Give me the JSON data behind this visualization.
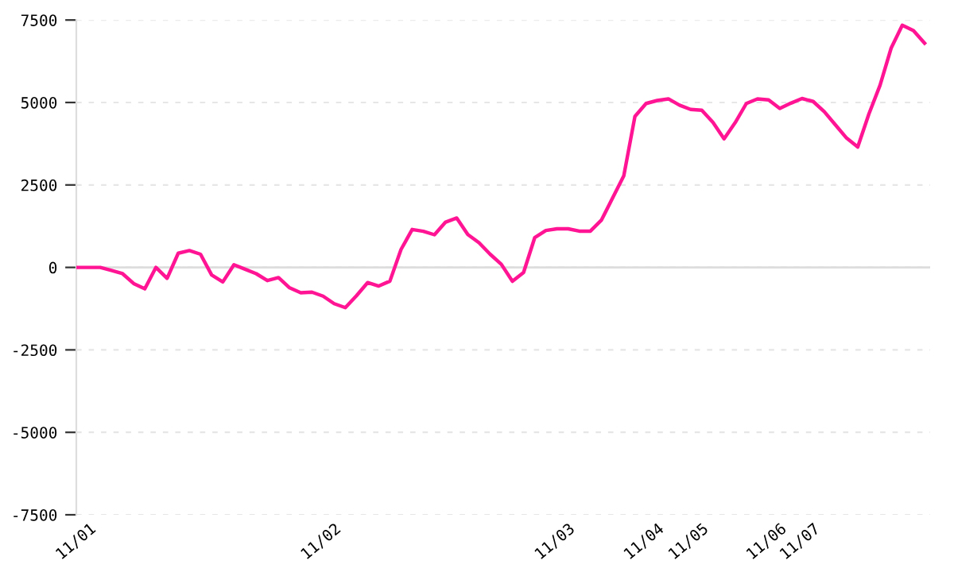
{
  "chart_data": {
    "type": "line",
    "categories": [
      null,
      "11/01",
      null,
      null,
      null,
      null,
      null,
      null,
      null,
      null,
      null,
      null,
      null,
      null,
      null,
      null,
      null,
      null,
      null,
      null,
      null,
      null,
      null,
      "11/02",
      null,
      null,
      null,
      null,
      null,
      null,
      null,
      null,
      null,
      null,
      null,
      null,
      null,
      null,
      null,
      null,
      null,
      null,
      null,
      null,
      "11/03",
      null,
      null,
      null,
      null,
      null,
      null,
      null,
      "11/04",
      null,
      null,
      null,
      "11/05",
      null,
      null,
      null,
      null,
      null,
      null,
      "11/06",
      null,
      null,
      "11/07",
      null,
      null,
      null,
      null,
      null,
      null,
      null,
      null,
      null,
      null
    ],
    "series": [
      {
        "color": "#ff1493",
        "values": [
          0,
          0,
          0,
          -90,
          -190,
          -490,
          -650,
          0,
          -330,
          430,
          510,
          400,
          -230,
          -440,
          80,
          -55,
          -190,
          -400,
          -310,
          -620,
          -770,
          -750,
          -870,
          -1100,
          -1220,
          -860,
          -460,
          -565,
          -416,
          544,
          1150,
          1096,
          990,
          1374,
          1497,
          996,
          750,
          400,
          95,
          -420,
          -154,
          900,
          1120,
          1170,
          1170,
          1100,
          1100,
          1440,
          2110,
          2780,
          4580,
          4970,
          5060,
          5110,
          4920,
          4790,
          4765,
          4400,
          3900,
          4390,
          4970,
          5110,
          5080,
          4820,
          4980,
          5120,
          5030,
          4720,
          4320,
          3920,
          3650,
          4650,
          5520,
          6650,
          7340,
          7180,
          6800
        ]
      }
    ],
    "ylim": [
      -7500,
      7500
    ],
    "yticks": [
      -7500,
      -5000,
      -2500,
      0,
      2500,
      5000,
      7500
    ],
    "grid": "y",
    "legend": false,
    "marker": "none",
    "line_style": "solid",
    "ref_lines": [
      {
        "axis": "y",
        "value": 0,
        "color": "#dddddd",
        "line_style": "solid"
      }
    ]
  }
}
